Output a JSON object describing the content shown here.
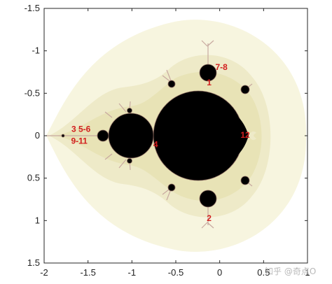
{
  "chart_data": {
    "type": "scatter",
    "title": "",
    "xlabel": "",
    "ylabel": "",
    "xlim": [
      -2,
      1
    ],
    "ylim": [
      1.5,
      -1.5
    ],
    "y_reversed": true,
    "grid": false,
    "xticks": [
      "-2",
      "-1.5",
      "-1",
      "-0.5",
      "0",
      "0.5",
      "1"
    ],
    "xtick_values": [
      -2,
      -1.5,
      -1,
      -0.5,
      0,
      0.5,
      1
    ],
    "yticks": [
      "-1.5",
      "-1",
      "-0.5",
      "0",
      "0.5",
      "1",
      "1.5"
    ],
    "ytick_values": [
      -1.5,
      -1,
      -0.5,
      0,
      0.5,
      1,
      1.5
    ],
    "points": [
      {
        "label": "1",
        "x": -0.12,
        "y": -0.62
      },
      {
        "label": "2",
        "x": -0.12,
        "y": 0.98
      },
      {
        "label": "3 5-6",
        "x": -1.58,
        "y": -0.07
      },
      {
        "label": "9-11",
        "x": -1.6,
        "y": 0.07
      },
      {
        "label": "7-8",
        "x": 0.02,
        "y": -0.8
      },
      {
        "label": "4",
        "x": -0.73,
        "y": 0.11
      },
      {
        "label": "12",
        "x": 0.29,
        "y": 0.0
      }
    ],
    "colors": {
      "set": "#000000",
      "outer_glow": "#f7f5df",
      "mid_glow": "#eeeac8",
      "inner_glow": "#e6e0b0",
      "filament": "#c8a9a0",
      "annotation": "#d21e1e"
    }
  },
  "watermark": "知乎 @奇点O"
}
